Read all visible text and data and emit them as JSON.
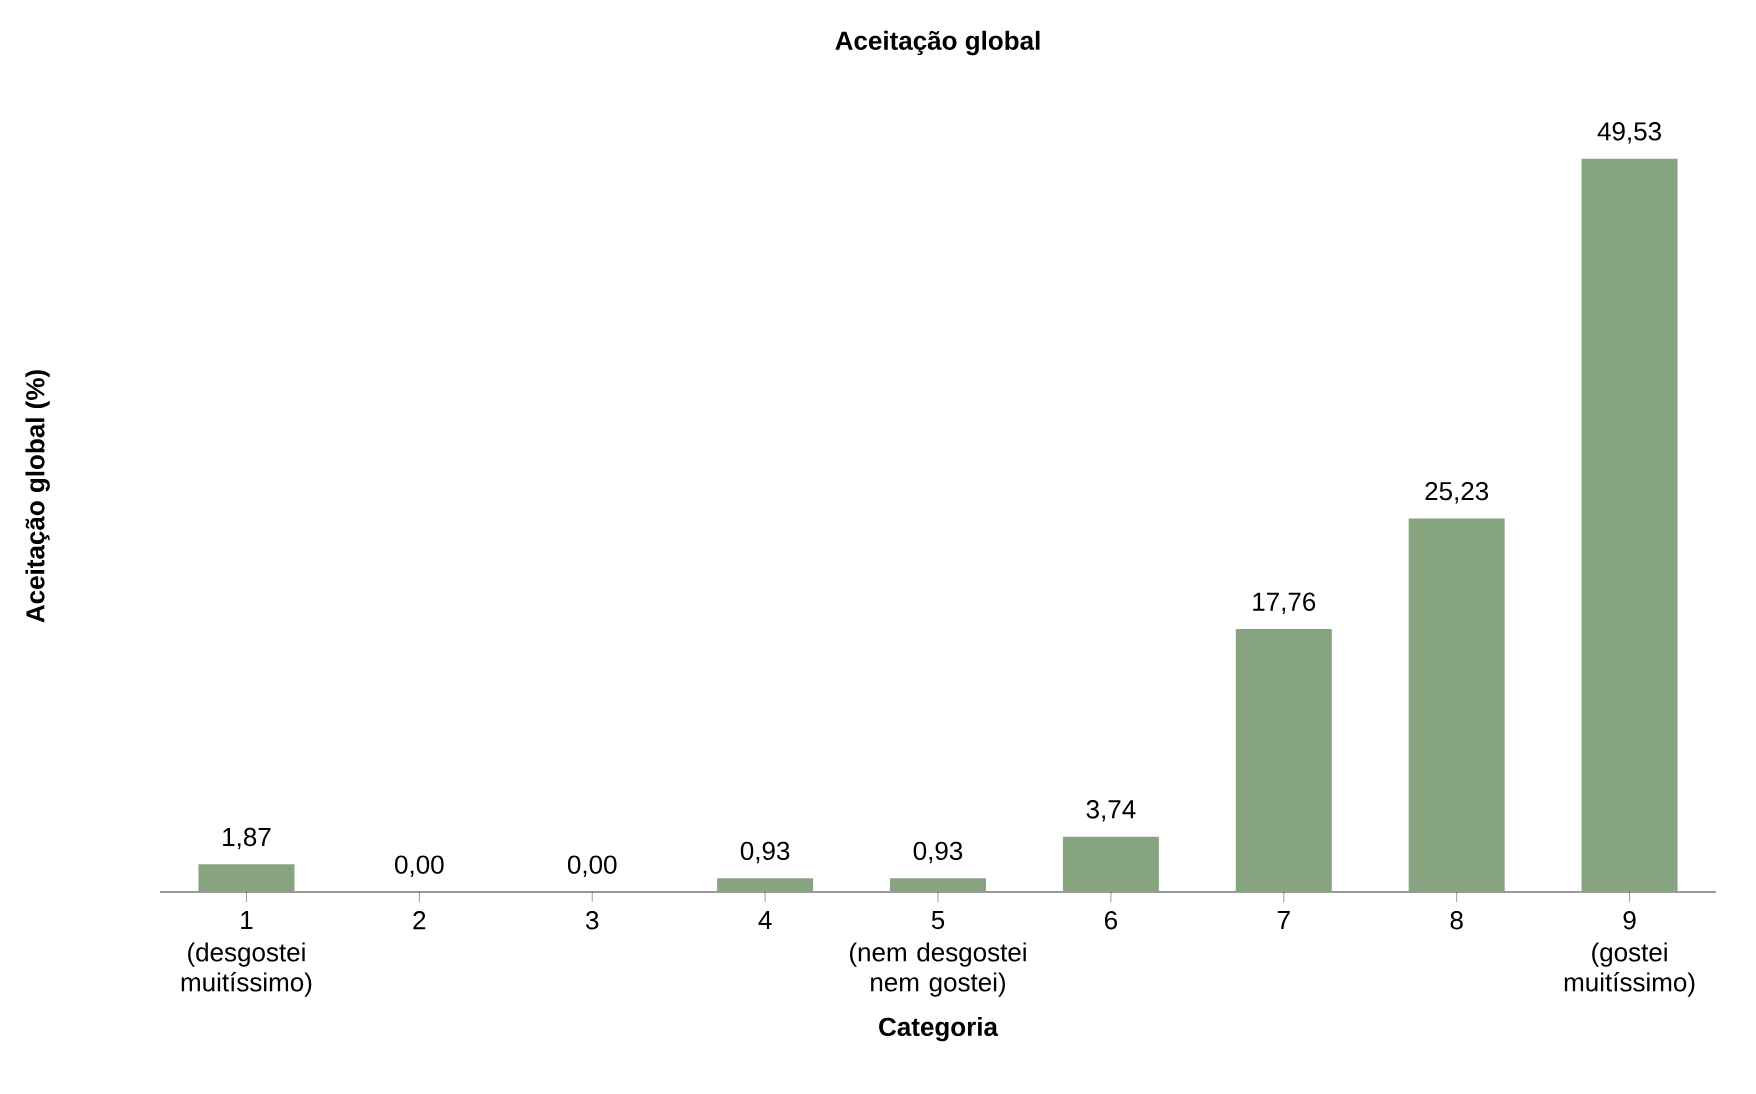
{
  "chart_data": {
    "type": "bar",
    "title": "Aceitação global",
    "xlabel": "Categoria",
    "ylabel": "Aceitação global (%)",
    "categories": [
      "1",
      "2",
      "3",
      "4",
      "5",
      "6",
      "7",
      "8",
      "9"
    ],
    "values": [
      1.87,
      0.0,
      0.0,
      0.93,
      0.93,
      3.74,
      17.76,
      25.23,
      49.53
    ],
    "value_labels": [
      "1,87",
      "0,00",
      "0,00",
      "0,93",
      "0,93",
      "3,74",
      "17,76",
      "25,23",
      "49,53"
    ],
    "color": "#87a480",
    "annotations": [
      "(desgostei muitíssimo)",
      "(nem desgostei nem gostei)",
      "(gostei muitíssimo)"
    ],
    "grid": false
  }
}
